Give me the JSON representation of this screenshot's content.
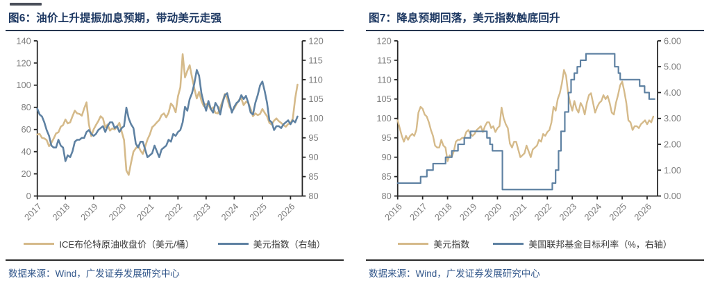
{
  "colors": {
    "tan": "#d5ba8a",
    "steel_blue": "#5e81a2",
    "title_navy": "#1d3862",
    "source_navy": "#31568a",
    "axis": "#262626",
    "tick_label": "#7f7f7f"
  },
  "figures": [
    {
      "title": "图6：油价上升提振加息预期，带动美元走强",
      "legend": [
        {
          "label": "ICE布伦特原油收盘价（美元/桶）",
          "color": "#d5ba8a"
        },
        {
          "label": "美元指数（右轴）",
          "color": "#5e81a2"
        }
      ],
      "source": "数据来源：Wind，广发证券发展研究中心"
    },
    {
      "title": "图7：降息预期回落，美元指数触底回升",
      "legend": [
        {
          "label": "美元指数",
          "color": "#d5ba8a"
        },
        {
          "label": "美国联邦基金目标利率（%，右轴）",
          "color": "#5e81a2"
        }
      ],
      "source": "数据来源：Wind，广发证券发展研究中心"
    }
  ],
  "chart_data": [
    {
      "type": "line",
      "title": "图6：油价上升提振加息预期，带动美元走强",
      "x_range": [
        2017,
        2026.42
      ],
      "x_ticks": [
        2017,
        2018,
        2019,
        2020,
        2021,
        2022,
        2023,
        2024,
        2025,
        2026
      ],
      "grid": false,
      "legend_position": "bottom",
      "left_axis": {
        "min": 0,
        "max": 140,
        "tick_values": [
          0,
          20,
          40,
          60,
          80,
          100,
          120,
          140
        ],
        "tick_labels": [
          "0",
          "20",
          "40",
          "60",
          "80",
          "100",
          "120",
          "140"
        ]
      },
      "right_axis": {
        "min": 80,
        "max": 120,
        "tick_values": [
          80,
          85,
          90,
          95,
          100,
          105,
          110,
          115,
          120
        ],
        "tick_labels": [
          "80",
          "85",
          "90",
          "95",
          "100",
          "105",
          "110",
          "115",
          "120"
        ]
      },
      "series": [
        {
          "name": "ICE布伦特原油收盘价（美元/桶）",
          "axis": "left",
          "color": "#d5ba8a",
          "width": 2.6,
          "step": false,
          "x0": 2017,
          "interval_months": 1,
          "values": [
            55.5,
            56,
            52.5,
            52,
            50.5,
            45,
            48,
            52,
            56.5,
            57.5,
            62.5,
            64,
            69,
            65.5,
            66.5,
            72,
            77,
            74.5,
            74,
            72.5,
            79,
            84.5,
            65,
            54,
            60,
            64,
            67.5,
            72,
            70,
            62,
            64.5,
            59,
            61,
            60,
            62.5,
            66,
            58,
            50.5,
            23,
            19,
            30,
            40,
            43,
            45.5,
            41,
            38,
            44.5,
            51,
            55.5,
            62,
            64,
            66.5,
            68.5,
            73,
            74.5,
            71,
            75,
            83.5,
            81,
            75.5,
            90,
            98,
            128,
            107,
            113,
            118,
            107,
            97,
            88,
            94,
            86,
            81,
            83,
            82.5,
            78,
            80,
            75,
            74.5,
            80,
            85.5,
            92,
            88,
            80.5,
            77,
            79,
            83,
            86.5,
            88,
            82,
            85,
            84,
            78.5,
            72,
            74.5,
            73,
            74,
            78.5,
            75,
            72,
            66,
            64.5,
            68,
            70,
            67.5,
            66,
            64,
            62.5,
            65,
            65.5,
            70,
            88,
            100.5
          ]
        },
        {
          "name": "美元指数（右轴）",
          "axis": "right",
          "color": "#5e81a2",
          "width": 2.6,
          "step": false,
          "x0": 2017,
          "interval_months": 1,
          "values": [
            102.5,
            101,
            100.5,
            99,
            97,
            95.5,
            93,
            92.5,
            92.5,
            94.5,
            93,
            92.5,
            89,
            90.5,
            90,
            91.5,
            94,
            94.5,
            94.5,
            95,
            95,
            96.5,
            97,
            96,
            95.5,
            96,
            97,
            97.5,
            98,
            96.5,
            98,
            99,
            99,
            97.5,
            98,
            96.5,
            97.5,
            98,
            102.8,
            100,
            98.5,
            97.5,
            93.5,
            92.5,
            94,
            94,
            92,
            90,
            90.5,
            91,
            93,
            91.5,
            90,
            92,
            92.5,
            93,
            94.5,
            94,
            96,
            95.5,
            96.5,
            97,
            99,
            103,
            102,
            105,
            106.5,
            109,
            112.5,
            111,
            106.5,
            104,
            102,
            104.5,
            102.5,
            101.5,
            104,
            103,
            101,
            104,
            106,
            106.5,
            104,
            101.5,
            103,
            104,
            104.5,
            106,
            105,
            105.8,
            104,
            101.5,
            101,
            104,
            106,
            108.5,
            109.5,
            107,
            104,
            99.5,
            99,
            97,
            98,
            98,
            97.5,
            98.5,
            99,
            99.5,
            98.5,
            99.5,
            99,
            100.5
          ]
        }
      ]
    },
    {
      "type": "line",
      "title": "图7：降息预期回落，美元指数触底回升",
      "x_range": [
        2016,
        2026.42
      ],
      "x_ticks": [
        2016,
        2017,
        2018,
        2019,
        2020,
        2021,
        2022,
        2023,
        2024,
        2025,
        2026
      ],
      "grid": false,
      "legend_position": "bottom",
      "left_axis": {
        "min": 80,
        "max": 120,
        "tick_values": [
          80,
          85,
          90,
          95,
          100,
          105,
          110,
          115,
          120
        ],
        "tick_labels": [
          "80",
          "85",
          "90",
          "95",
          "100",
          "105",
          "110",
          "115",
          "120"
        ]
      },
      "right_axis": {
        "min": 0,
        "max": 6,
        "tick_values": [
          0,
          1,
          2,
          3,
          4,
          5,
          6
        ],
        "tick_labels": [
          "0.00",
          "1.00",
          "2.00",
          "3.00",
          "4.00",
          "5.00",
          "6.00"
        ]
      },
      "series": [
        {
          "name": "美元指数",
          "axis": "left",
          "color": "#d5ba8a",
          "width": 2.4,
          "step": false,
          "x0": 2016,
          "interval_months": 1,
          "values": [
            99.5,
            97.5,
            95.5,
            94,
            95.5,
            94.5,
            95.5,
            96,
            95.5,
            97,
            101.5,
            103,
            102.5,
            101,
            100.5,
            99,
            97,
            95.5,
            93,
            92.5,
            92.5,
            94.5,
            93,
            92.5,
            89,
            90.5,
            90,
            91.5,
            94,
            94.5,
            94.5,
            95,
            95,
            96.5,
            97,
            96,
            95.5,
            96,
            97,
            97.5,
            98,
            96.5,
            98,
            99,
            99,
            97.5,
            98,
            96.5,
            97.5,
            98,
            102.8,
            100,
            98.5,
            97.5,
            93.5,
            92.5,
            94,
            94,
            92,
            90,
            90.5,
            91,
            93,
            91.5,
            90,
            92,
            92.5,
            93,
            94.5,
            94,
            96,
            95.5,
            96.5,
            97,
            99,
            103,
            102,
            105,
            106.5,
            109,
            112.5,
            111,
            106.5,
            104,
            102,
            104.5,
            102.5,
            101.5,
            104,
            103,
            101,
            104,
            106,
            106.5,
            104,
            101.5,
            103,
            104,
            104.5,
            106,
            105,
            105.8,
            104,
            101.5,
            101,
            104,
            106,
            108.5,
            109.5,
            107,
            104,
            99.5,
            99,
            97,
            98,
            98,
            97.5,
            98.5,
            99,
            99.5,
            98.5,
            99.5,
            99,
            100.5
          ]
        },
        {
          "name": "美国联邦基金目标利率（%，右轴）",
          "axis": "right",
          "color": "#5e81a2",
          "width": 2.2,
          "step": true,
          "points": [
            [
              2016.0,
              0.5
            ],
            [
              2016.92,
              0.75
            ],
            [
              2017.17,
              1.0
            ],
            [
              2017.42,
              1.25
            ],
            [
              2017.92,
              1.5
            ],
            [
              2018.17,
              1.75
            ],
            [
              2018.42,
              2.0
            ],
            [
              2018.67,
              2.25
            ],
            [
              2018.92,
              2.5
            ],
            [
              2019.58,
              2.25
            ],
            [
              2019.7,
              2.0
            ],
            [
              2019.8,
              1.75
            ],
            [
              2020.2,
              0.25
            ],
            [
              2022.2,
              0.5
            ],
            [
              2022.33,
              1.0
            ],
            [
              2022.45,
              1.75
            ],
            [
              2022.55,
              2.5
            ],
            [
              2022.7,
              3.25
            ],
            [
              2022.85,
              4.0
            ],
            [
              2022.95,
              4.5
            ],
            [
              2023.08,
              4.75
            ],
            [
              2023.2,
              5.0
            ],
            [
              2023.33,
              5.25
            ],
            [
              2023.55,
              5.5
            ],
            [
              2024.7,
              5.0
            ],
            [
              2024.85,
              4.75
            ],
            [
              2024.92,
              4.5
            ],
            [
              2025.7,
              4.25
            ],
            [
              2025.9,
              4.0
            ],
            [
              2026.08,
              3.75
            ],
            [
              2026.3,
              3.75
            ]
          ]
        }
      ]
    }
  ]
}
